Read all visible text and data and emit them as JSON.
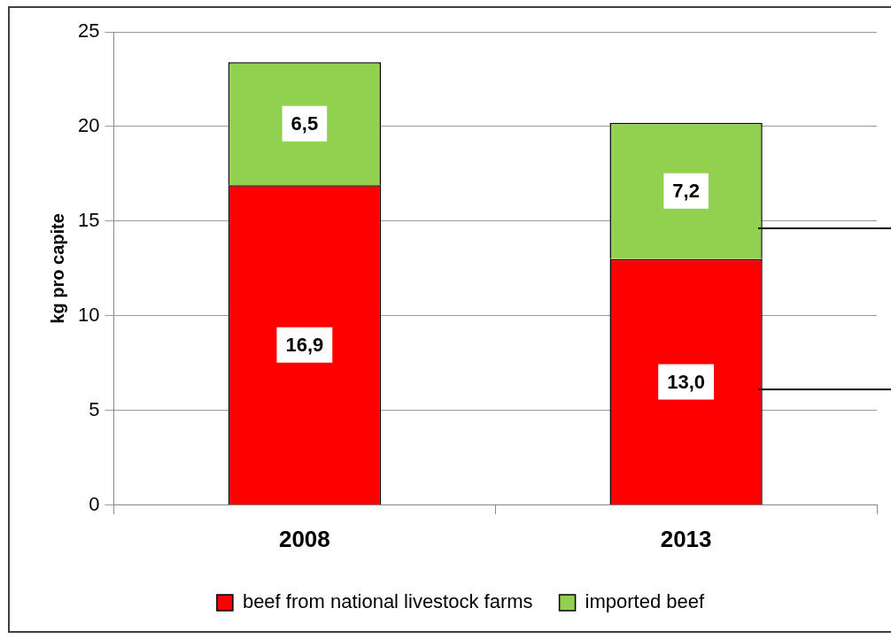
{
  "chart_data": {
    "type": "bar",
    "stacked": true,
    "ylabel": "kg pro capite",
    "categories": [
      "2008",
      "2013"
    ],
    "series": [
      {
        "name": "beef from national livestock farms",
        "color": "#ff0000",
        "values": [
          16.9,
          13.0
        ],
        "value_labels": [
          "16,9",
          "13,0"
        ]
      },
      {
        "name": "imported beef",
        "color": "#92d050",
        "values": [
          6.5,
          7.2
        ],
        "value_labels": [
          "6,5",
          "7,2"
        ]
      }
    ],
    "ylim": [
      0,
      25
    ],
    "yticks": [
      0,
      5,
      10,
      15,
      20,
      25
    ],
    "grid": "y",
    "legend": "bottom"
  }
}
